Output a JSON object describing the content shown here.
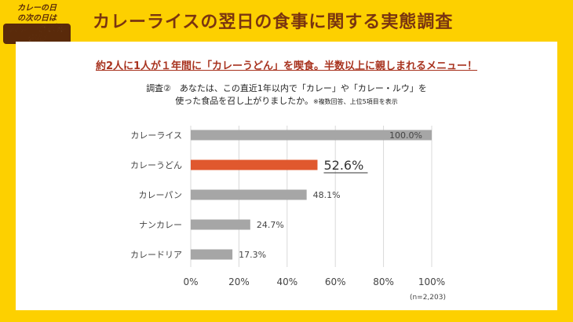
{
  "logo": {
    "line1": "カレーの日",
    "line2": "の次の日は",
    "line3": "カレーうどんの日"
  },
  "header": {
    "title": "カレーライスの翌日の食事に関する実態調査"
  },
  "subtitle": "約2人に1人が１年間に「カレーうどん」を喫食。半数以上に親しまれるメニュー！",
  "question": {
    "line1": "調査②　あなたは、この直近1年以内で「カレー」や「カレー・ルウ」を",
    "line2": "使った食品を召し上がりましたか。",
    "note": "※複数回答、上位5項目を表示"
  },
  "chart_data": {
    "type": "bar",
    "orientation": "horizontal",
    "categories": [
      "カレーライス",
      "カレーうどん",
      "カレーパン",
      "ナンカレー",
      "カレードリア"
    ],
    "values": [
      100.0,
      52.6,
      48.1,
      24.7,
      17.3
    ],
    "labels": [
      "100.0%",
      "52.6%",
      "48.1%",
      "24.7%",
      "17.3%"
    ],
    "xlim": [
      0,
      100
    ],
    "xticks": [
      "0%",
      "20%",
      "40%",
      "60%",
      "80%",
      "100%"
    ],
    "grid": true,
    "highlight_index": 1,
    "colors": {
      "default": "#a6a6a6",
      "highlight": "#e0582e"
    },
    "note": "(n=2,203)"
  }
}
